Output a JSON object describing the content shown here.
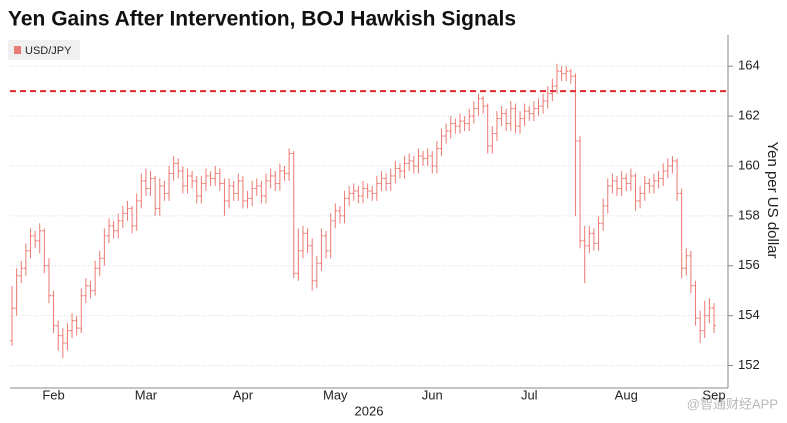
{
  "chart_data": {
    "type": "ohlc",
    "title": "Yen Gains After Intervention, BOJ Hawkish Signals",
    "y_label": "Yen per US dollar",
    "x_label": "2026",
    "watermark": "@智通财经APP",
    "ylim": [
      151.1,
      165.25
    ],
    "yticks": [
      152,
      154,
      156,
      158,
      160,
      162,
      164
    ],
    "grid": true,
    "legend": "top-left",
    "reference_line": 163,
    "reference_color": "#e0282e",
    "categories": [
      null,
      null,
      null,
      null,
      null,
      null,
      null,
      null,
      null,
      "Feb",
      null,
      null,
      null,
      null,
      null,
      null,
      null,
      null,
      null,
      null,
      null,
      null,
      null,
      null,
      null,
      null,
      null,
      null,
      null,
      "Mar",
      null,
      null,
      null,
      null,
      null,
      null,
      null,
      null,
      null,
      null,
      null,
      null,
      null,
      null,
      null,
      null,
      null,
      null,
      null,
      null,
      "Apr",
      null,
      null,
      null,
      null,
      null,
      null,
      null,
      null,
      null,
      null,
      null,
      null,
      null,
      null,
      null,
      null,
      null,
      null,
      null,
      "May",
      null,
      null,
      null,
      null,
      null,
      null,
      null,
      null,
      null,
      null,
      null,
      null,
      null,
      null,
      null,
      null,
      null,
      null,
      null,
      null,
      "Jun",
      null,
      null,
      null,
      null,
      null,
      null,
      null,
      null,
      null,
      null,
      null,
      null,
      null,
      null,
      null,
      null,
      null,
      null,
      null,
      null,
      "Jul",
      null,
      null,
      null,
      null,
      null,
      null,
      null,
      null,
      null,
      null,
      null,
      null,
      null,
      null,
      null,
      null,
      null,
      null,
      null,
      null,
      "Aug",
      null,
      null,
      null,
      null,
      null,
      null,
      null,
      null,
      null,
      null,
      null,
      null,
      null,
      null,
      null,
      null,
      null,
      null,
      "Sep"
    ],
    "series": [
      {
        "name": "USD/JPY",
        "color": "#eb7a72",
        "values": [
          [
            153.0,
            155.2,
            152.8,
            154.3
          ],
          [
            154.3,
            155.9,
            154.0,
            155.6
          ],
          [
            155.6,
            156.2,
            155.3,
            155.9
          ],
          [
            155.9,
            156.9,
            155.6,
            156.6
          ],
          [
            156.6,
            157.5,
            156.3,
            157.2
          ],
          [
            157.2,
            157.4,
            156.7,
            157.0
          ],
          [
            157.0,
            157.7,
            156.5,
            157.4
          ],
          [
            157.4,
            157.5,
            155.7,
            156.0
          ],
          [
            156.0,
            156.3,
            154.5,
            154.8
          ],
          [
            154.8,
            155.0,
            153.3,
            153.6
          ],
          [
            153.6,
            153.8,
            152.6,
            153.2
          ],
          [
            153.2,
            153.5,
            152.3,
            152.9
          ],
          [
            152.9,
            153.7,
            152.6,
            153.4
          ],
          [
            153.4,
            154.1,
            153.1,
            153.8
          ],
          [
            153.8,
            154.0,
            153.2,
            153.5
          ],
          [
            153.5,
            155.1,
            153.3,
            154.8
          ],
          [
            154.8,
            155.5,
            154.5,
            155.2
          ],
          [
            155.2,
            155.4,
            154.7,
            155.0
          ],
          [
            155.0,
            156.2,
            154.8,
            155.9
          ],
          [
            155.9,
            156.6,
            155.6,
            156.3
          ],
          [
            156.3,
            157.5,
            156.0,
            157.2
          ],
          [
            157.2,
            157.9,
            156.9,
            157.6
          ],
          [
            157.6,
            157.8,
            157.1,
            157.4
          ],
          [
            157.4,
            158.1,
            157.1,
            157.8
          ],
          [
            157.8,
            158.4,
            157.5,
            158.1
          ],
          [
            158.1,
            158.6,
            157.8,
            158.3
          ],
          [
            158.3,
            158.4,
            157.3,
            157.6
          ],
          [
            157.6,
            158.9,
            157.4,
            158.6
          ],
          [
            158.6,
            159.7,
            158.3,
            159.4
          ],
          [
            159.4,
            159.9,
            158.8,
            159.1
          ],
          [
            159.1,
            159.8,
            158.8,
            159.5
          ],
          [
            159.5,
            159.6,
            158.0,
            158.3
          ],
          [
            158.3,
            159.5,
            158.0,
            159.2
          ],
          [
            159.2,
            159.4,
            158.6,
            158.9
          ],
          [
            158.9,
            160.0,
            158.6,
            159.7
          ],
          [
            159.7,
            160.4,
            159.4,
            160.1
          ],
          [
            160.1,
            160.3,
            159.5,
            159.8
          ],
          [
            159.8,
            160.0,
            158.9,
            159.2
          ],
          [
            159.2,
            159.9,
            158.9,
            159.6
          ],
          [
            159.6,
            159.8,
            159.1,
            159.4
          ],
          [
            159.4,
            159.6,
            158.5,
            158.8
          ],
          [
            158.8,
            159.6,
            158.5,
            159.3
          ],
          [
            159.3,
            159.9,
            159.0,
            159.6
          ],
          [
            159.6,
            159.8,
            159.2,
            159.5
          ],
          [
            159.5,
            160.0,
            159.2,
            159.7
          ],
          [
            159.7,
            159.9,
            159.0,
            159.3
          ],
          [
            159.3,
            159.5,
            158.0,
            158.6
          ],
          [
            158.6,
            159.5,
            158.3,
            159.2
          ],
          [
            159.2,
            159.4,
            158.6,
            158.9
          ],
          [
            158.9,
            159.7,
            158.6,
            159.4
          ],
          [
            159.4,
            159.6,
            158.3,
            158.6
          ],
          [
            158.6,
            159.0,
            158.3,
            158.7
          ],
          [
            158.7,
            159.4,
            158.4,
            159.1
          ],
          [
            159.1,
            159.5,
            158.8,
            159.2
          ],
          [
            159.2,
            159.4,
            158.5,
            158.8
          ],
          [
            158.8,
            159.7,
            158.5,
            159.4
          ],
          [
            159.4,
            159.9,
            159.1,
            159.6
          ],
          [
            159.6,
            159.8,
            159.0,
            159.3
          ],
          [
            159.3,
            160.1,
            159.0,
            159.8
          ],
          [
            159.8,
            160.0,
            159.4,
            159.7
          ],
          [
            159.7,
            160.7,
            159.4,
            160.5
          ],
          [
            160.5,
            160.6,
            155.5,
            155.7
          ],
          [
            155.7,
            157.5,
            155.4,
            156.6
          ],
          [
            156.6,
            157.6,
            156.3,
            157.3
          ],
          [
            157.3,
            157.5,
            156.5,
            156.8
          ],
          [
            156.8,
            157.1,
            155.0,
            155.4
          ],
          [
            155.4,
            156.4,
            155.1,
            156.1
          ],
          [
            156.1,
            157.5,
            155.8,
            157.2
          ],
          [
            157.2,
            157.4,
            156.3,
            156.6
          ],
          [
            156.6,
            158.1,
            156.3,
            157.8
          ],
          [
            157.8,
            158.5,
            157.5,
            158.2
          ],
          [
            158.2,
            158.4,
            157.7,
            158.0
          ],
          [
            158.0,
            159.0,
            157.7,
            158.7
          ],
          [
            158.7,
            159.2,
            158.4,
            158.9
          ],
          [
            158.9,
            159.3,
            158.6,
            159.0
          ],
          [
            159.0,
            159.2,
            158.5,
            158.8
          ],
          [
            158.8,
            159.4,
            158.5,
            159.1
          ],
          [
            159.1,
            159.3,
            158.7,
            159.0
          ],
          [
            159.0,
            159.2,
            158.6,
            158.9
          ],
          [
            158.9,
            159.6,
            158.6,
            159.3
          ],
          [
            159.3,
            159.8,
            159.0,
            159.5
          ],
          [
            159.5,
            159.7,
            159.0,
            159.3
          ],
          [
            159.3,
            159.9,
            159.0,
            159.6
          ],
          [
            159.6,
            160.2,
            159.3,
            159.9
          ],
          [
            159.9,
            160.1,
            159.5,
            159.8
          ],
          [
            159.8,
            160.4,
            159.5,
            160.1
          ],
          [
            160.1,
            160.5,
            159.8,
            160.2
          ],
          [
            160.2,
            160.4,
            159.7,
            160.0
          ],
          [
            160.0,
            160.7,
            159.7,
            160.4
          ],
          [
            160.4,
            160.6,
            160.0,
            160.3
          ],
          [
            160.3,
            160.7,
            160.0,
            160.4
          ],
          [
            160.4,
            160.6,
            159.7,
            160.0
          ],
          [
            160.0,
            161.0,
            159.7,
            160.7
          ],
          [
            160.7,
            161.5,
            160.4,
            161.2
          ],
          [
            161.2,
            161.7,
            160.9,
            161.4
          ],
          [
            161.4,
            162.0,
            161.1,
            161.7
          ],
          [
            161.7,
            161.9,
            161.3,
            161.6
          ],
          [
            161.6,
            162.1,
            161.3,
            161.8
          ],
          [
            161.8,
            162.0,
            161.4,
            161.7
          ],
          [
            161.7,
            162.3,
            161.4,
            162.0
          ],
          [
            162.0,
            162.6,
            161.7,
            162.3
          ],
          [
            162.3,
            162.9,
            162.0,
            162.7
          ],
          [
            162.7,
            162.8,
            162.1,
            162.4
          ],
          [
            162.4,
            162.5,
            160.5,
            160.8
          ],
          [
            160.8,
            161.6,
            160.5,
            161.3
          ],
          [
            161.3,
            162.2,
            161.0,
            161.9
          ],
          [
            161.9,
            162.4,
            161.6,
            162.1
          ],
          [
            162.1,
            162.3,
            161.4,
            161.7
          ],
          [
            161.7,
            162.6,
            161.4,
            162.3
          ],
          [
            162.3,
            162.5,
            161.3,
            161.6
          ],
          [
            161.6,
            162.2,
            161.3,
            161.9
          ],
          [
            161.9,
            162.5,
            161.6,
            162.2
          ],
          [
            162.2,
            162.4,
            161.8,
            162.1
          ],
          [
            162.1,
            162.6,
            161.8,
            162.3
          ],
          [
            162.3,
            162.7,
            162.0,
            162.4
          ],
          [
            162.4,
            162.9,
            162.1,
            162.6
          ],
          [
            162.6,
            163.2,
            162.3,
            162.9
          ],
          [
            162.9,
            163.5,
            162.6,
            163.2
          ],
          [
            163.2,
            164.1,
            162.9,
            163.8
          ],
          [
            163.8,
            164.0,
            163.4,
            163.7
          ],
          [
            163.7,
            164.0,
            163.4,
            163.8
          ],
          [
            163.8,
            163.9,
            163.3,
            163.6
          ],
          [
            163.6,
            163.7,
            158.0,
            161.0
          ],
          [
            161.0,
            161.2,
            156.7,
            157.0
          ],
          [
            157.0,
            157.6,
            155.3,
            156.8
          ],
          [
            156.8,
            157.6,
            156.5,
            157.3
          ],
          [
            157.3,
            157.5,
            156.6,
            156.9
          ],
          [
            156.9,
            158.0,
            156.6,
            157.7
          ],
          [
            157.7,
            158.7,
            157.4,
            158.4
          ],
          [
            158.4,
            159.5,
            158.1,
            159.2
          ],
          [
            159.2,
            159.7,
            158.9,
            159.4
          ],
          [
            159.4,
            159.6,
            158.8,
            159.1
          ],
          [
            159.1,
            159.8,
            158.8,
            159.5
          ],
          [
            159.5,
            159.7,
            159.0,
            159.3
          ],
          [
            159.3,
            159.9,
            159.0,
            159.6
          ],
          [
            159.6,
            159.7,
            158.2,
            158.6
          ],
          [
            158.6,
            159.2,
            158.3,
            158.9
          ],
          [
            158.9,
            159.6,
            158.6,
            159.3
          ],
          [
            159.3,
            159.5,
            158.9,
            159.2
          ],
          [
            159.2,
            159.7,
            158.9,
            159.4
          ],
          [
            159.4,
            159.8,
            159.1,
            159.5
          ],
          [
            159.5,
            160.1,
            159.2,
            159.8
          ],
          [
            159.8,
            160.3,
            159.5,
            160.0
          ],
          [
            160.0,
            160.4,
            159.7,
            160.2
          ],
          [
            160.2,
            160.3,
            158.6,
            158.9
          ],
          [
            158.9,
            159.1,
            155.5,
            155.9
          ],
          [
            155.9,
            156.7,
            155.6,
            156.4
          ],
          [
            156.4,
            156.6,
            154.9,
            155.2
          ],
          [
            155.2,
            155.4,
            153.6,
            153.9
          ],
          [
            153.9,
            154.2,
            152.9,
            153.4
          ],
          [
            153.4,
            154.6,
            153.1,
            154.0
          ],
          [
            154.0,
            154.7,
            153.7,
            154.3
          ],
          [
            154.3,
            154.5,
            153.3,
            153.6
          ]
        ]
      }
    ]
  }
}
